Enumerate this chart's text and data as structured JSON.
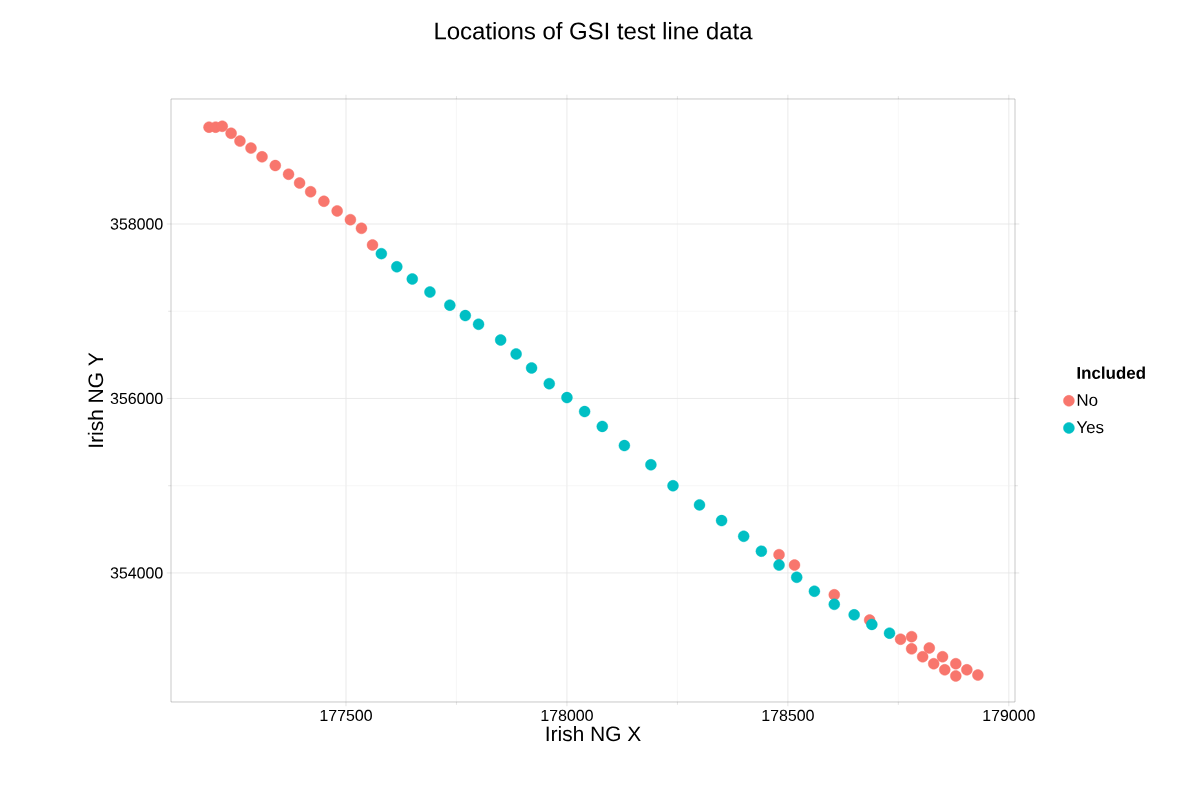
{
  "chart_data": {
    "type": "scatter",
    "title": "Locations of GSI test line data",
    "xlabel": "Irish NG X",
    "ylabel": "Irish NG Y",
    "legend_title": "Included",
    "xlim": [
      177104,
      179014
    ],
    "ylim": [
      352521,
      359433
    ],
    "xticks": [
      177500,
      178000,
      178500,
      179000
    ],
    "yticks": [
      354000,
      356000,
      358000
    ],
    "grid": true,
    "legend": "right",
    "marker": "circle",
    "series": [
      {
        "name": "No",
        "color": "#f8766d",
        "x": [
          177190,
          177205,
          177220,
          177240,
          177260,
          177285,
          177310,
          177340,
          177370,
          177395,
          177420,
          177450,
          177480,
          177510,
          177535,
          177560,
          177580,
          178300,
          178480,
          178515,
          178605,
          178685,
          178730,
          178755,
          178780,
          178805,
          178830,
          178855,
          178880,
          178780,
          178820,
          178850,
          178880,
          178905,
          178930
        ],
        "values": [
          359110,
          359110,
          359120,
          359040,
          358950,
          358870,
          358770,
          358670,
          358570,
          358470,
          358370,
          358260,
          358150,
          358050,
          357950,
          357760,
          null,
          null,
          354210,
          354090,
          353750,
          353460,
          null,
          353240,
          353130,
          353040,
          352960,
          352890,
          352820,
          353270,
          353140,
          353040,
          352960,
          352890,
          352830
        ]
      },
      {
        "name": "Yes",
        "color": "#00bfc4",
        "x": [
          177580,
          177615,
          177650,
          177690,
          177735,
          177770,
          177800,
          177850,
          177885,
          177920,
          177960,
          178000,
          178040,
          178080,
          178130,
          178190,
          178240,
          178300,
          178350,
          178400,
          178440,
          178480,
          178520,
          178560,
          178605,
          178650,
          178690,
          178730
        ],
        "values": [
          357660,
          357510,
          357370,
          357220,
          357070,
          356950,
          356850,
          356670,
          356510,
          356350,
          356170,
          356010,
          355850,
          355680,
          355460,
          355240,
          355000,
          354780,
          354600,
          354420,
          354250,
          354090,
          353950,
          353790,
          353640,
          353520,
          353410,
          353310
        ]
      }
    ]
  }
}
